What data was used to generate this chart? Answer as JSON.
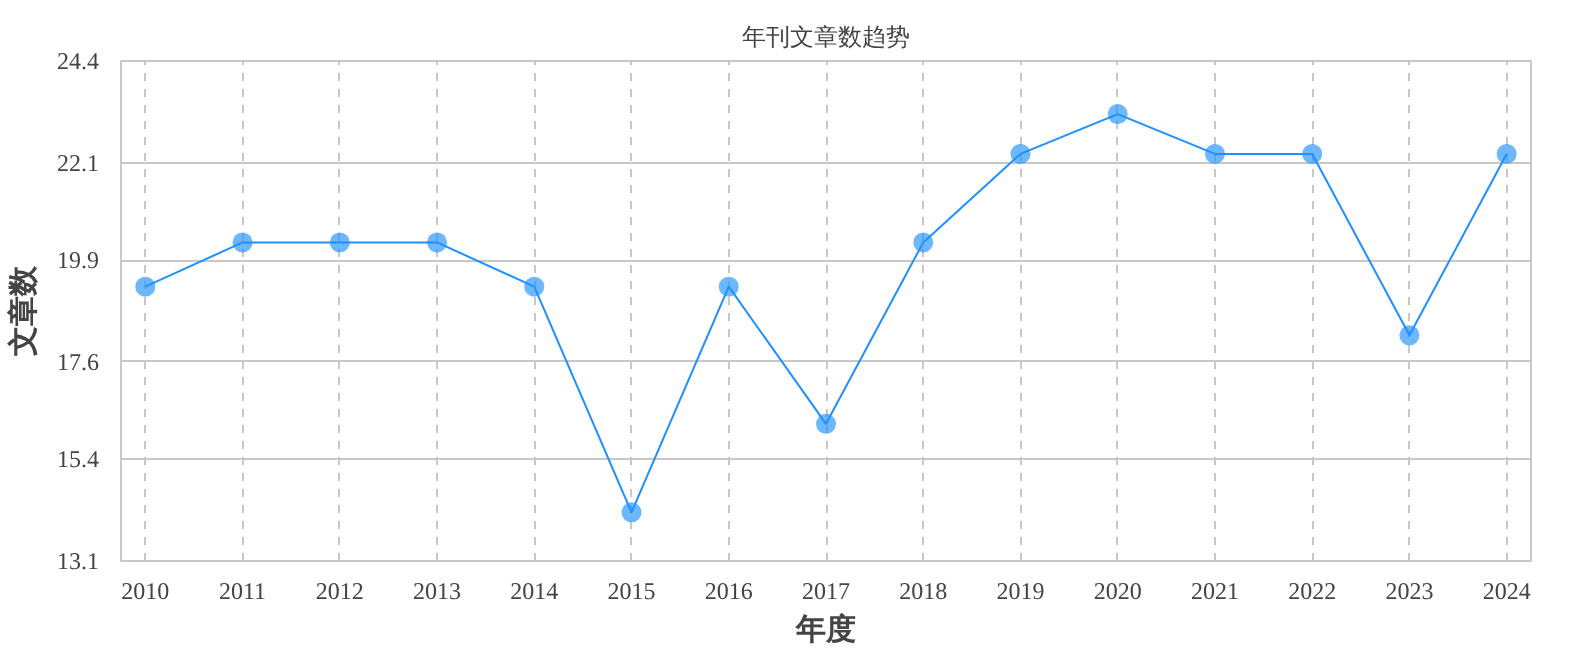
{
  "chart_data": {
    "type": "line",
    "title": "年刊文章数趋势",
    "xlabel": "年度",
    "ylabel": "文章数",
    "categories": [
      "2010",
      "2011",
      "2012",
      "2013",
      "2014",
      "2015",
      "2016",
      "2017",
      "2018",
      "2019",
      "2020",
      "2021",
      "2022",
      "2023",
      "2024"
    ],
    "series": [
      {
        "color": "#1e90ff",
        "values": [
          19.3,
          20.3,
          20.3,
          20.3,
          19.3,
          14.2,
          19.3,
          16.2,
          20.3,
          22.3,
          23.2,
          22.3,
          22.3,
          18.2,
          22.3
        ]
      }
    ],
    "ylim": [
      13.1,
      24.4
    ],
    "yticks": [
      13.1,
      15.4,
      17.6,
      19.9,
      22.1,
      24.4
    ],
    "grid": true,
    "marker": "circle"
  }
}
